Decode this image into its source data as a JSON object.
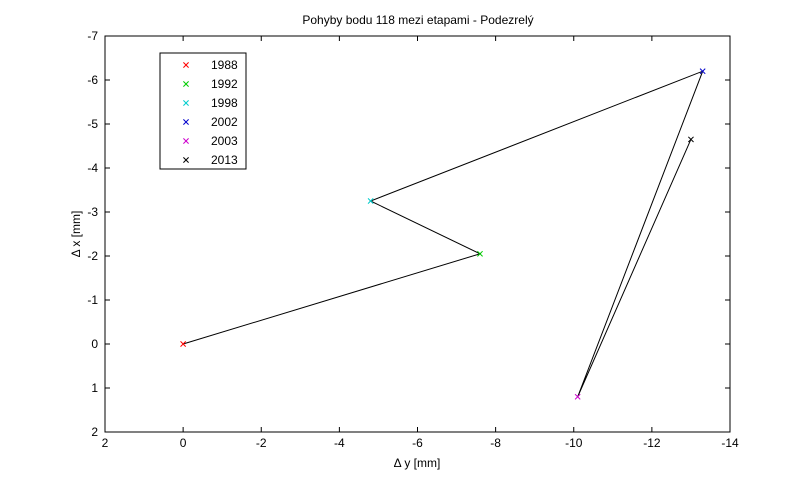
{
  "chart_data": {
    "type": "line",
    "title": "Pohyby bodu 118 mezi etapami - Podezrelý",
    "xlabel": "Δ y [mm]",
    "ylabel": "Δ x [mm]",
    "xlim": [
      2,
      -14
    ],
    "ylim": [
      2,
      -7
    ],
    "x_ticks": [
      2,
      0,
      -2,
      -4,
      -6,
      -8,
      -10,
      -12,
      -14
    ],
    "y_ticks": [
      -7,
      -6,
      -5,
      -4,
      -3,
      -2,
      -1,
      0,
      1,
      2
    ],
    "grid": false,
    "legend_position": "top-left",
    "path": {
      "color": "#000000",
      "points": [
        {
          "x": 0,
          "y": 0
        },
        {
          "x": -7.6,
          "y": -2.05
        },
        {
          "x": -4.8,
          "y": -3.25
        },
        {
          "x": -13.3,
          "y": -6.2
        },
        {
          "x": -10.1,
          "y": 1.2
        },
        {
          "x": -13.0,
          "y": -4.65
        }
      ]
    },
    "series": [
      {
        "name": "1988",
        "color": "#ff0000",
        "points": [
          {
            "x": 0,
            "y": 0
          }
        ]
      },
      {
        "name": "1992",
        "color": "#00cc00",
        "points": [
          {
            "x": -7.6,
            "y": -2.05
          }
        ]
      },
      {
        "name": "1998",
        "color": "#00cccc",
        "points": [
          {
            "x": -4.8,
            "y": -3.25
          }
        ]
      },
      {
        "name": "2002",
        "color": "#0000cc",
        "points": [
          {
            "x": -13.3,
            "y": -6.2
          }
        ]
      },
      {
        "name": "2003",
        "color": "#cc00cc",
        "points": [
          {
            "x": -10.1,
            "y": 1.2
          }
        ]
      },
      {
        "name": "2013",
        "color": "#000000",
        "points": [
          {
            "x": -13.0,
            "y": -4.65
          }
        ]
      }
    ]
  }
}
